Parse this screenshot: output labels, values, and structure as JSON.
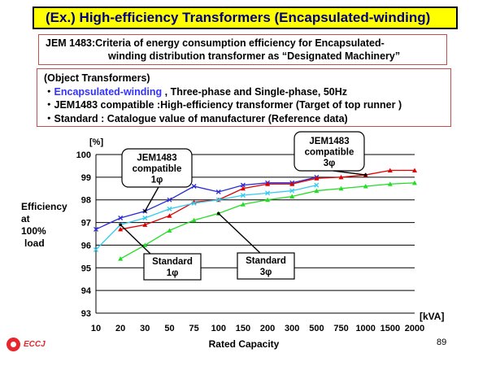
{
  "slide": {
    "title": "(Ex.) High-efficiency Transformers (Encapsulated-winding)",
    "page_number": "89",
    "logo_text": "ECCJ"
  },
  "jem_box": {
    "line1": "JEM 1483:Criteria  of energy consumption efficiency for Encapsulated-",
    "line2": "winding distribution transformer as “Designated Machinery”"
  },
  "object_box": {
    "heading": "(Object Transformers)",
    "items": [
      {
        "bullet": "・",
        "highlight": "Encapsulated-winding",
        "text": " ,  Three-phase  and  Single-phase,   50Hz"
      },
      {
        "bullet": "・",
        "highlight": "",
        "text": "JEM1483 compatible :High-efficiency  transformer  (Target of top runner )"
      },
      {
        "bullet": "・",
        "highlight": "",
        "text": "Standard : Catalogue  value of manufacturer  (Reference  data)"
      }
    ]
  },
  "chart_data": {
    "type": "line",
    "categories": [
      "10",
      "20",
      "30",
      "50",
      "75",
      "100",
      "150",
      "200",
      "300",
      "500",
      "750",
      "1000",
      "1500",
      "2000"
    ],
    "xlabel": "Rated Capacity",
    "x_unit": "[kVA]",
    "ylabel_lines": [
      "Efficiency",
      "at",
      "100%",
      "load"
    ],
    "y_unit": "[%]",
    "ylim": [
      93,
      100
    ],
    "yticks": [
      "93",
      "94",
      "95",
      "96",
      "97",
      "98",
      "99",
      "100"
    ],
    "grid": true,
    "series": [
      {
        "id": "jem_1phase",
        "color": "#2a2ad8",
        "marker": "x",
        "values": [
          96.7,
          97.2,
          97.5,
          98.0,
          98.6,
          98.35,
          98.65,
          98.75,
          98.75,
          99.0,
          null,
          null,
          null,
          null
        ]
      },
      {
        "id": "jem_3phase",
        "color": "#e00000",
        "marker": "triangle",
        "values": [
          null,
          96.7,
          96.9,
          97.3,
          97.9,
          98.0,
          98.5,
          98.7,
          98.7,
          98.95,
          99.0,
          99.1,
          99.3,
          99.3
        ]
      },
      {
        "id": "std_1phase",
        "color": "#33ccee",
        "marker": "x",
        "values": [
          95.8,
          96.9,
          97.2,
          97.6,
          97.85,
          98.0,
          98.2,
          98.3,
          98.4,
          98.65,
          null,
          null,
          null,
          null
        ]
      },
      {
        "id": "std_3phase",
        "color": "#22dd22",
        "marker": "triangle",
        "values": [
          null,
          95.4,
          96.0,
          96.65,
          97.1,
          97.4,
          97.8,
          98.0,
          98.15,
          98.4,
          98.5,
          98.6,
          98.7,
          98.75
        ]
      }
    ],
    "callouts": [
      {
        "lines": [
          "JEM1483",
          "compatible",
          "1φ"
        ],
        "target": {
          "cat": 2,
          "val": 97.5
        }
      },
      {
        "lines": [
          "JEM1483",
          "compatible",
          "3φ"
        ],
        "target": {
          "cat": 11,
          "val": 99.1
        }
      },
      {
        "lines": [
          "Standard",
          "1φ"
        ],
        "target": {
          "cat": 1,
          "val": 96.9
        }
      },
      {
        "lines": [
          "Standard",
          "3φ"
        ],
        "target": {
          "cat": 5,
          "val": 97.4
        }
      }
    ]
  }
}
